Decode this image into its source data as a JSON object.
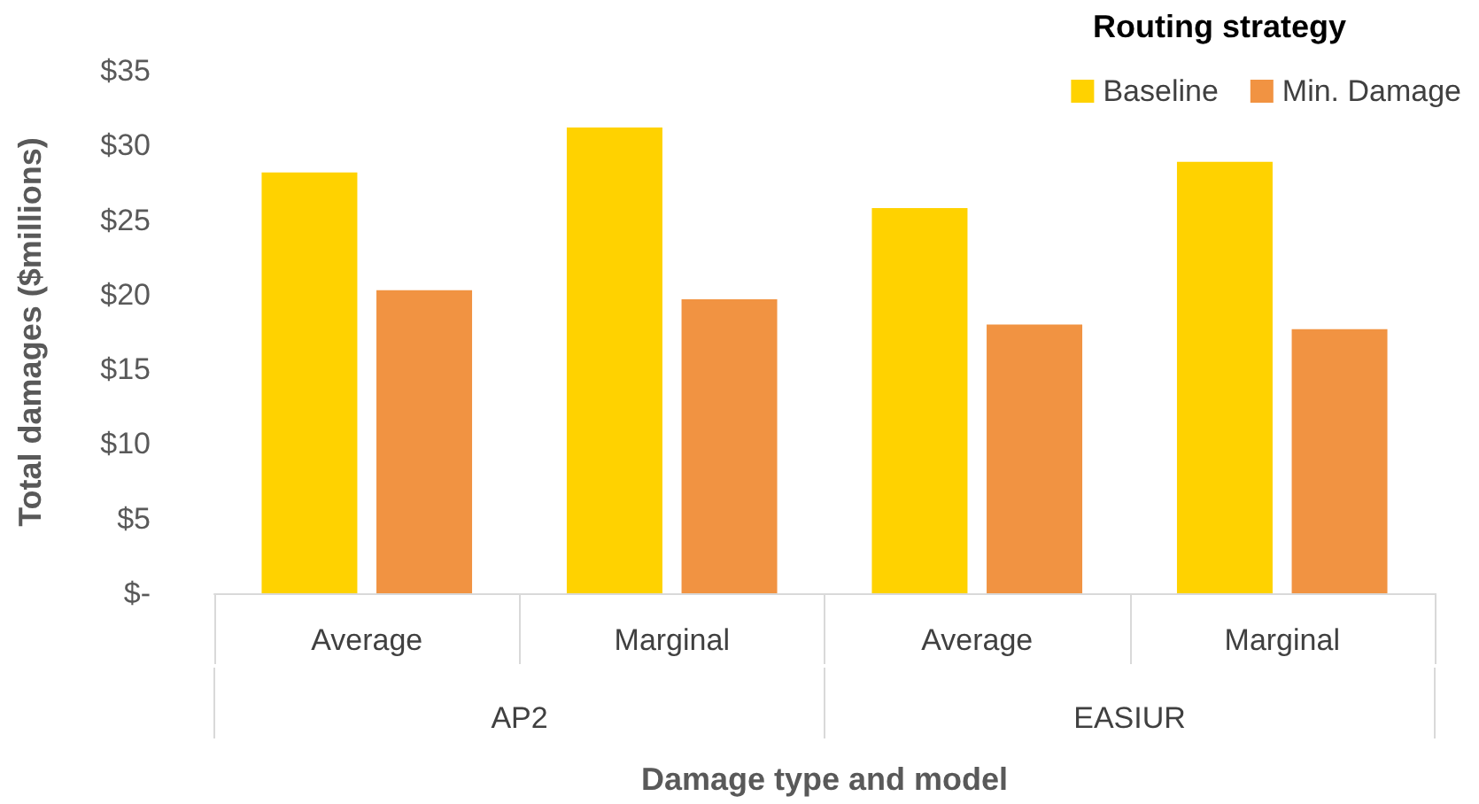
{
  "chart_data": {
    "type": "bar",
    "xlabel": "Damage type and model",
    "ylabel": "Total damages ($millions)",
    "legend_title": "Routing strategy",
    "categories": [
      "Average",
      "Marginal",
      "Average",
      "Marginal"
    ],
    "series": [
      {
        "name": "Baseline",
        "color": "#ffd200",
        "values": [
          28.2,
          31.2,
          25.8,
          28.9
        ]
      },
      {
        "name": "Min. Damage",
        "color": "#f19342",
        "values": [
          20.3,
          19.7,
          18.0,
          17.7
        ]
      }
    ],
    "ylim": [
      0,
      35
    ],
    "yticks": [
      {
        "value": 0,
        "label": "$-"
      },
      {
        "value": 5,
        "label": "$5"
      },
      {
        "value": 10,
        "label": "$10"
      },
      {
        "value": 15,
        "label": "$15"
      },
      {
        "value": 20,
        "label": "$20"
      },
      {
        "value": 25,
        "label": "$25"
      },
      {
        "value": 30,
        "label": "$30"
      },
      {
        "value": 35,
        "label": "$35"
      }
    ],
    "annotations": [
      "AP2",
      "EASIUR"
    ],
    "grid": false,
    "legend": "top right"
  }
}
